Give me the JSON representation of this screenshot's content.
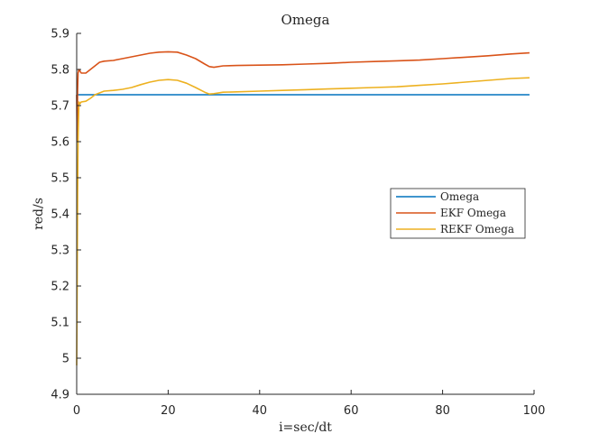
{
  "chart_data": {
    "type": "line",
    "title": "Omega",
    "xlabel": "i=sec/dt",
    "ylabel": "red/s",
    "xlim": [
      0,
      100
    ],
    "ylim": [
      4.9,
      5.9
    ],
    "xticks": [
      0,
      20,
      40,
      60,
      80,
      100
    ],
    "yticks": [
      4.9,
      5.0,
      5.1,
      5.2,
      5.3,
      5.4,
      5.5,
      5.6,
      5.7,
      5.8,
      5.9
    ],
    "xtick_labels": [
      "0",
      "20",
      "40",
      "60",
      "80",
      "100"
    ],
    "ytick_labels": [
      "4.9",
      "5",
      "5.1",
      "5.2",
      "5.3",
      "5.4",
      "5.5",
      "5.6",
      "5.7",
      "5.8",
      "5.9"
    ],
    "grid": false,
    "legend_position": "right-middle",
    "series": [
      {
        "name": "Omega",
        "color": "#0072BD",
        "x": [
          0,
          99
        ],
        "y": [
          5.73,
          5.73
        ]
      },
      {
        "name": "EKF Omega",
        "color": "#D95319",
        "x": [
          0,
          0.1,
          0.2,
          0.3,
          0.5,
          1,
          2,
          3,
          4,
          5,
          6,
          8,
          10,
          12,
          14,
          16,
          18,
          20,
          22,
          24,
          26,
          28,
          29,
          30,
          32,
          35,
          40,
          45,
          50,
          55,
          60,
          65,
          70,
          75,
          80,
          85,
          90,
          95,
          99
        ],
        "y": [
          5.73,
          5.6,
          5.74,
          5.79,
          5.8,
          5.79,
          5.79,
          5.8,
          5.81,
          5.82,
          5.823,
          5.825,
          5.83,
          5.835,
          5.84,
          5.845,
          5.848,
          5.849,
          5.848,
          5.84,
          5.83,
          5.815,
          5.808,
          5.806,
          5.81,
          5.811,
          5.812,
          5.813,
          5.815,
          5.817,
          5.82,
          5.822,
          5.824,
          5.826,
          5.83,
          5.834,
          5.838,
          5.843,
          5.846
        ]
      },
      {
        "name": "REKF Omega",
        "color": "#EDB120",
        "x": [
          0,
          0.1,
          0.2,
          0.3,
          0.4,
          0.5,
          0.7,
          1,
          2,
          3,
          4,
          5,
          6,
          8,
          10,
          12,
          14,
          16,
          18,
          20,
          22,
          24,
          26,
          28,
          29,
          30,
          32,
          35,
          40,
          45,
          50,
          55,
          60,
          65,
          70,
          75,
          80,
          85,
          90,
          95,
          99
        ],
        "y": [
          4.98,
          5.2,
          5.45,
          5.6,
          5.66,
          5.71,
          5.705,
          5.71,
          5.712,
          5.72,
          5.73,
          5.735,
          5.74,
          5.742,
          5.745,
          5.75,
          5.758,
          5.765,
          5.77,
          5.772,
          5.77,
          5.762,
          5.75,
          5.737,
          5.732,
          5.733,
          5.737,
          5.738,
          5.74,
          5.742,
          5.744,
          5.746,
          5.748,
          5.75,
          5.752,
          5.756,
          5.76,
          5.765,
          5.77,
          5.775,
          5.777
        ]
      }
    ]
  }
}
